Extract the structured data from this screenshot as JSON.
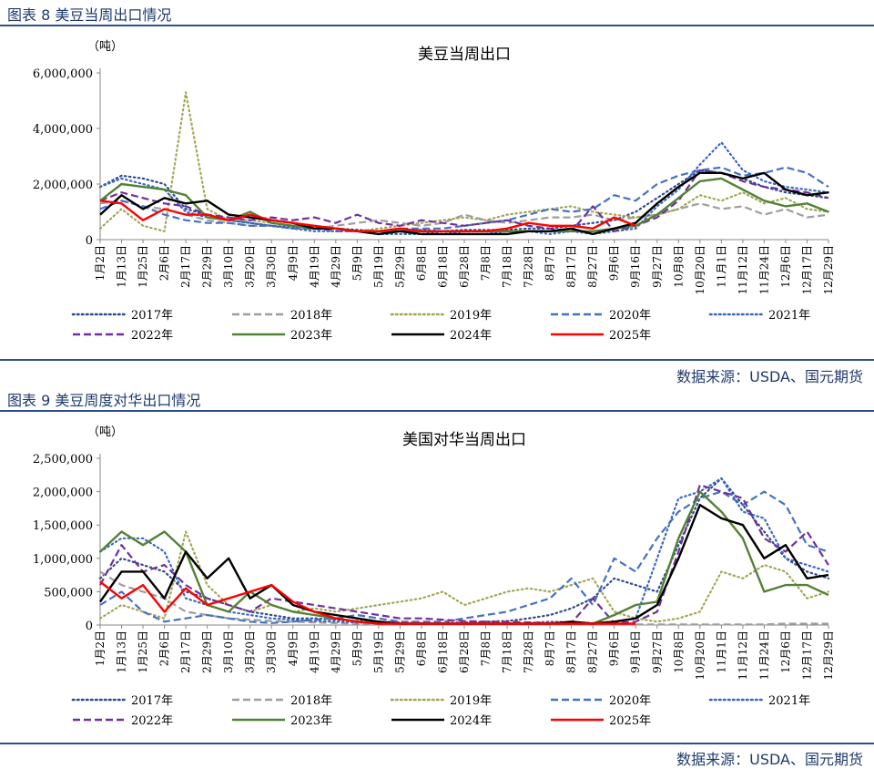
{
  "fig1": {
    "section_title": "图表 8 美豆当周出口情况",
    "source": "数据来源：USDA、国元期货"
  },
  "fig2": {
    "section_title": "图表 9 美豆周度对华出口情况",
    "source": "数据来源：USDA、国元期货"
  },
  "series_colors": {
    "2017年": "#2f4d8a",
    "2018年": "#9e9e9e",
    "2019年": "#a3a655",
    "2020年": "#4472c4",
    "2021年": "#3a68c0",
    "2022年": "#7030a0",
    "2023年": "#538135",
    "2024年": "#000000",
    "2025年": "#ff0000"
  },
  "series_styles": {
    "2017年": "dotted",
    "2018年": "dashed",
    "2019年": "dotted",
    "2020年": "dashed",
    "2021年": "dotted",
    "2022年": "dashed",
    "2023年": "solid",
    "2024年": "solid",
    "2025年": "solid"
  },
  "chart_data": [
    {
      "type": "line",
      "title": "美豆当周出口",
      "ylabel": "（吨）",
      "ylim": [
        0,
        6000000
      ],
      "yticks": [
        "0",
        "2,000,000",
        "4,000,000",
        "6,000,000"
      ],
      "ytick_values": [
        0,
        2000000,
        4000000,
        6000000
      ],
      "xtick_labels": [
        "1月2日",
        "1月13日",
        "1月25日",
        "2月6日",
        "2月17日",
        "2月29日",
        "3月10日",
        "3月20日",
        "3月30日",
        "4月9日",
        "4月19日",
        "4月29日",
        "5月9日",
        "5月19日",
        "5月29日",
        "6月8日",
        "6月18日",
        "6月28日",
        "7月8日",
        "7月18日",
        "7月28日",
        "8月7日",
        "8月17日",
        "8月27日",
        "9月6日",
        "9月16日",
        "9月27日",
        "10月8日",
        "10月20日",
        "11月1日",
        "11月12日",
        "11月24日",
        "12月6日",
        "12月17日",
        "12月29日"
      ],
      "legend_position": "bottom",
      "series": [
        {
          "name": "2017年",
          "values": [
            1900000,
            2300000,
            2200000,
            2000000,
            1100000,
            900000,
            700000,
            600000,
            500000,
            450000,
            500000,
            400000,
            350000,
            300000,
            300000,
            350000,
            300000,
            350000,
            350000,
            350000,
            400000,
            400000,
            500000,
            600000,
            700000,
            1000000,
            1500000,
            2000000,
            2500000,
            2400000,
            2200000,
            1900000,
            1700000,
            1600000,
            1500000
          ]
        },
        {
          "name": "2018年",
          "values": [
            1300000,
            1400000,
            1200000,
            1100000,
            900000,
            700000,
            600000,
            500000,
            500000,
            400000,
            400000,
            500000,
            600000,
            700000,
            600000,
            500000,
            600000,
            900000,
            700000,
            600000,
            700000,
            800000,
            800000,
            900000,
            700000,
            800000,
            900000,
            1100000,
            1300000,
            1100000,
            1200000,
            900000,
            1100000,
            800000,
            900000
          ]
        },
        {
          "name": "2019年",
          "values": [
            400000,
            1100000,
            500000,
            300000,
            5300000,
            1100000,
            700000,
            700000,
            600000,
            500000,
            500000,
            400000,
            300000,
            400000,
            500000,
            600000,
            700000,
            800000,
            700000,
            900000,
            1000000,
            1100000,
            1200000,
            1000000,
            900000,
            800000,
            900000,
            1100000,
            1600000,
            1400000,
            1700000,
            1300000,
            1500000,
            1100000,
            1000000
          ]
        },
        {
          "name": "2020年",
          "values": [
            1100000,
            1400000,
            1200000,
            900000,
            700000,
            600000,
            600000,
            500000,
            500000,
            400000,
            400000,
            300000,
            300000,
            300000,
            400000,
            400000,
            400000,
            500000,
            600000,
            700000,
            900000,
            1100000,
            1000000,
            1100000,
            1600000,
            1400000,
            2000000,
            2300000,
            2500000,
            2600000,
            2300000,
            2400000,
            2600000,
            2400000,
            1900000
          ]
        },
        {
          "name": "2021年",
          "values": [
            1900000,
            2200000,
            2000000,
            1800000,
            1000000,
            800000,
            700000,
            600000,
            500000,
            400000,
            300000,
            300000,
            300000,
            200000,
            200000,
            200000,
            300000,
            200000,
            200000,
            300000,
            300000,
            200000,
            300000,
            200000,
            300000,
            400000,
            1200000,
            1800000,
            2700000,
            3500000,
            2500000,
            2100000,
            1900000,
            1800000,
            1700000
          ]
        },
        {
          "name": "2022年",
          "values": [
            1400000,
            1700000,
            1500000,
            1300000,
            1200000,
            900000,
            800000,
            700000,
            800000,
            700000,
            800000,
            600000,
            900000,
            600000,
            500000,
            700000,
            600000,
            500000,
            600000,
            700000,
            500000,
            400000,
            300000,
            1200000,
            300000,
            500000,
            800000,
            1400000,
            2500000,
            2400000,
            2100000,
            1900000,
            1800000,
            1700000,
            1500000
          ]
        },
        {
          "name": "2023年",
          "values": [
            1400000,
            2000000,
            1900000,
            1800000,
            1600000,
            800000,
            700000,
            1000000,
            600000,
            500000,
            400000,
            400000,
            300000,
            300000,
            300000,
            300000,
            300000,
            300000,
            300000,
            300000,
            300000,
            300000,
            300000,
            300000,
            400000,
            500000,
            900000,
            1500000,
            2100000,
            2200000,
            1800000,
            1400000,
            1200000,
            1300000,
            1000000
          ]
        },
        {
          "name": "2024年",
          "values": [
            900000,
            1600000,
            1100000,
            1500000,
            1300000,
            1400000,
            900000,
            800000,
            700000,
            600000,
            400000,
            400000,
            300000,
            200000,
            300000,
            200000,
            200000,
            200000,
            200000,
            200000,
            300000,
            300000,
            400000,
            200000,
            400000,
            600000,
            1300000,
            1900000,
            2400000,
            2400000,
            2200000,
            2400000,
            1800000,
            1600000,
            1700000
          ]
        },
        {
          "name": "2025年",
          "values": [
            1400000,
            1300000,
            700000,
            1100000,
            900000,
            900000,
            700000,
            900000,
            700000,
            600000,
            500000,
            400000,
            300000,
            300000,
            400000,
            300000,
            300000,
            300000,
            300000,
            400000,
            600000,
            500000,
            500000,
            400000,
            800000,
            500000
          ]
        }
      ]
    },
    {
      "type": "line",
      "title": "美国对华当周出口",
      "ylabel": "（吨）",
      "ylim": [
        0,
        2500000
      ],
      "yticks": [
        "0",
        "500,000",
        "1,000,000",
        "1,500,000",
        "2,000,000",
        "2,500,000"
      ],
      "ytick_values": [
        0,
        500000,
        1000000,
        1500000,
        2000000,
        2500000
      ],
      "xtick_labels": [
        "1月2日",
        "1月13日",
        "1月25日",
        "2月6日",
        "2月17日",
        "2月29日",
        "3月10日",
        "3月20日",
        "3月30日",
        "4月9日",
        "4月19日",
        "4月29日",
        "5月9日",
        "5月19日",
        "5月29日",
        "6月8日",
        "6月18日",
        "6月28日",
        "7月8日",
        "7月18日",
        "7月28日",
        "8月7日",
        "8月17日",
        "8月27日",
        "9月6日",
        "9月16日",
        "9月27日",
        "10月8日",
        "10月20日",
        "11月1日",
        "11月12日",
        "11月24日",
        "12月6日",
        "12月17日",
        "12月29日"
      ],
      "legend_position": "bottom",
      "series": [
        {
          "name": "2017年",
          "values": [
            700000,
            1000000,
            900000,
            800000,
            500000,
            400000,
            300000,
            200000,
            150000,
            100000,
            100000,
            80000,
            60000,
            50000,
            40000,
            30000,
            30000,
            40000,
            50000,
            60000,
            100000,
            150000,
            250000,
            400000,
            700000,
            600000,
            500000,
            1200000,
            1900000,
            2200000,
            1800000,
            1400000,
            1000000,
            800000,
            700000
          ]
        },
        {
          "name": "2018年",
          "values": [
            800000,
            600000,
            500000,
            400000,
            200000,
            150000,
            100000,
            80000,
            60000,
            50000,
            40000,
            30000,
            20000,
            20000,
            10000,
            10000,
            10000,
            10000,
            10000,
            10000,
            10000,
            10000,
            10000,
            10000,
            10000,
            10000,
            10000,
            10000,
            10000,
            10000,
            10000,
            10000,
            20000,
            20000,
            20000
          ]
        },
        {
          "name": "2019年",
          "values": [
            100000,
            300000,
            200000,
            100000,
            1400000,
            600000,
            300000,
            200000,
            300000,
            200000,
            250000,
            200000,
            250000,
            300000,
            350000,
            400000,
            500000,
            300000,
            400000,
            500000,
            550000,
            500000,
            600000,
            700000,
            200000,
            100000,
            50000,
            100000,
            200000,
            800000,
            700000,
            900000,
            800000,
            400000,
            500000
          ]
        },
        {
          "name": "2020年",
          "values": [
            300000,
            500000,
            200000,
            50000,
            100000,
            150000,
            100000,
            50000,
            30000,
            50000,
            80000,
            100000,
            150000,
            100000,
            50000,
            50000,
            50000,
            100000,
            150000,
            200000,
            300000,
            400000,
            700000,
            300000,
            1000000,
            800000,
            1300000,
            1700000,
            1900000,
            2000000,
            1800000,
            2000000,
            1800000,
            1200000,
            1100000
          ]
        },
        {
          "name": "2021年",
          "values": [
            1100000,
            1300000,
            1300000,
            1100000,
            400000,
            300000,
            200000,
            150000,
            100000,
            80000,
            60000,
            50000,
            40000,
            30000,
            20000,
            20000,
            20000,
            20000,
            20000,
            20000,
            30000,
            50000,
            40000,
            30000,
            50000,
            100000,
            1000000,
            1900000,
            2000000,
            2200000,
            1700000,
            1600000,
            1000000,
            900000,
            800000
          ]
        },
        {
          "name": "2022年",
          "values": [
            600000,
            1200000,
            800000,
            900000,
            600000,
            400000,
            300000,
            200000,
            400000,
            350000,
            300000,
            250000,
            200000,
            150000,
            100000,
            100000,
            80000,
            60000,
            50000,
            50000,
            40000,
            30000,
            30000,
            400000,
            30000,
            50000,
            200000,
            1100000,
            2100000,
            2000000,
            1900000,
            1300000,
            1100000,
            1400000,
            900000
          ]
        },
        {
          "name": "2023年",
          "values": [
            1100000,
            1400000,
            1200000,
            1400000,
            1100000,
            300000,
            200000,
            500000,
            300000,
            200000,
            150000,
            100000,
            50000,
            30000,
            20000,
            20000,
            20000,
            20000,
            20000,
            20000,
            20000,
            20000,
            20000,
            20000,
            150000,
            300000,
            350000,
            1300000,
            2000000,
            1700000,
            1300000,
            500000,
            600000,
            600000,
            450000
          ]
        },
        {
          "name": "2024年",
          "values": [
            350000,
            800000,
            800000,
            400000,
            1100000,
            700000,
            1000000,
            400000,
            600000,
            300000,
            200000,
            150000,
            100000,
            50000,
            20000,
            20000,
            20000,
            20000,
            20000,
            20000,
            20000,
            20000,
            50000,
            20000,
            50000,
            100000,
            300000,
            1000000,
            1800000,
            1600000,
            1500000,
            1000000,
            1200000,
            700000,
            750000
          ]
        },
        {
          "name": "2025年",
          "values": [
            650000,
            400000,
            600000,
            200000,
            550000,
            300000,
            400000,
            500000,
            600000,
            350000,
            200000,
            100000,
            50000,
            20000,
            20000,
            20000,
            20000,
            20000,
            20000,
            20000,
            20000,
            20000,
            20000,
            20000,
            20000,
            20000
          ]
        }
      ]
    }
  ]
}
